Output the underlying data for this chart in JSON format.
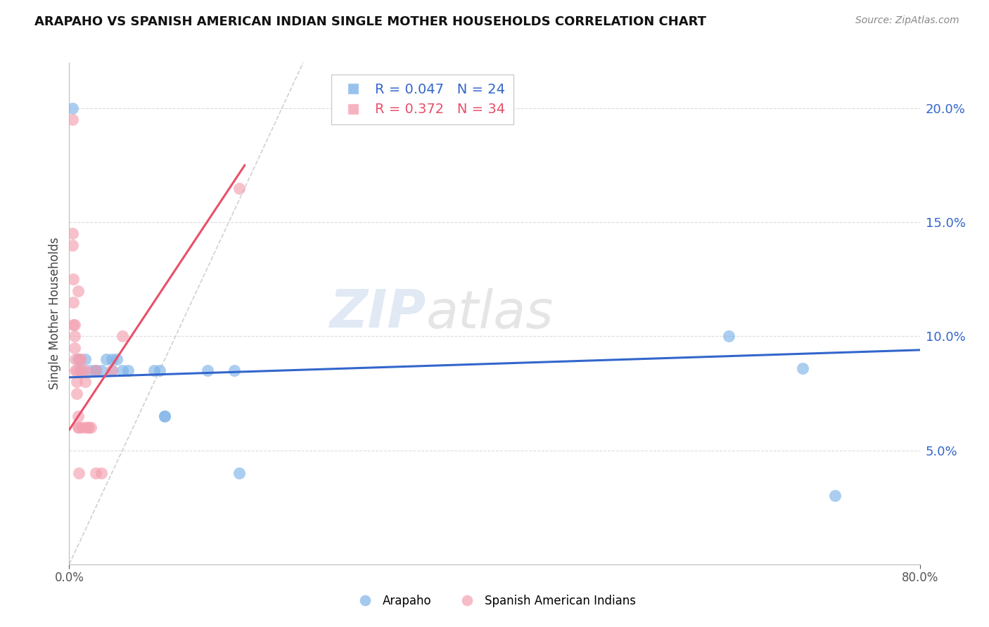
{
  "title": "ARAPAHO VS SPANISH AMERICAN INDIAN SINGLE MOTHER HOUSEHOLDS CORRELATION CHART",
  "source": "Source: ZipAtlas.com",
  "ylabel": "Single Mother Households",
  "legend_labels": [
    "Arapaho",
    "Spanish American Indians"
  ],
  "legend_R": [
    0.047,
    0.372
  ],
  "legend_N": [
    24,
    34
  ],
  "blue_color": "#7EB3E8",
  "pink_color": "#F4A0B0",
  "blue_line_color": "#3366CC",
  "pink_line_color": "#E8506A",
  "ref_line_color": "#CCCCCC",
  "watermark_color": "#BBCFE8",
  "xlim": [
    0.0,
    0.8
  ],
  "ylim": [
    0.0,
    0.22
  ],
  "yticks_right": [
    0.05,
    0.1,
    0.15,
    0.2
  ],
  "arapaho_x": [
    0.003,
    0.008,
    0.01,
    0.015,
    0.02,
    0.025,
    0.025,
    0.03,
    0.035,
    0.04,
    0.04,
    0.045,
    0.05,
    0.055,
    0.08,
    0.085,
    0.09,
    0.09,
    0.13,
    0.155,
    0.16,
    0.62,
    0.69,
    0.72
  ],
  "arapaho_y": [
    0.2,
    0.09,
    0.085,
    0.09,
    0.085,
    0.085,
    0.085,
    0.085,
    0.09,
    0.09,
    0.085,
    0.09,
    0.085,
    0.085,
    0.085,
    0.085,
    0.065,
    0.065,
    0.085,
    0.085,
    0.04,
    0.1,
    0.086,
    0.03
  ],
  "spanish_x": [
    0.003,
    0.003,
    0.003,
    0.004,
    0.004,
    0.004,
    0.005,
    0.005,
    0.005,
    0.006,
    0.006,
    0.007,
    0.007,
    0.007,
    0.008,
    0.008,
    0.008,
    0.009,
    0.009,
    0.01,
    0.01,
    0.012,
    0.012,
    0.015,
    0.015,
    0.016,
    0.018,
    0.02,
    0.025,
    0.025,
    0.03,
    0.04,
    0.05,
    0.16
  ],
  "spanish_y": [
    0.195,
    0.145,
    0.14,
    0.125,
    0.115,
    0.105,
    0.105,
    0.1,
    0.095,
    0.09,
    0.085,
    0.085,
    0.08,
    0.075,
    0.12,
    0.065,
    0.06,
    0.06,
    0.04,
    0.09,
    0.09,
    0.085,
    0.06,
    0.085,
    0.08,
    0.06,
    0.06,
    0.06,
    0.085,
    0.04,
    0.04,
    0.085,
    0.1,
    0.165
  ],
  "blue_trendline_x": [
    0.0,
    0.8
  ],
  "blue_trendline_y": [
    0.082,
    0.094
  ],
  "pink_trendline_x": [
    0.0,
    0.165
  ],
  "pink_trendline_y": [
    0.059,
    0.175
  ]
}
